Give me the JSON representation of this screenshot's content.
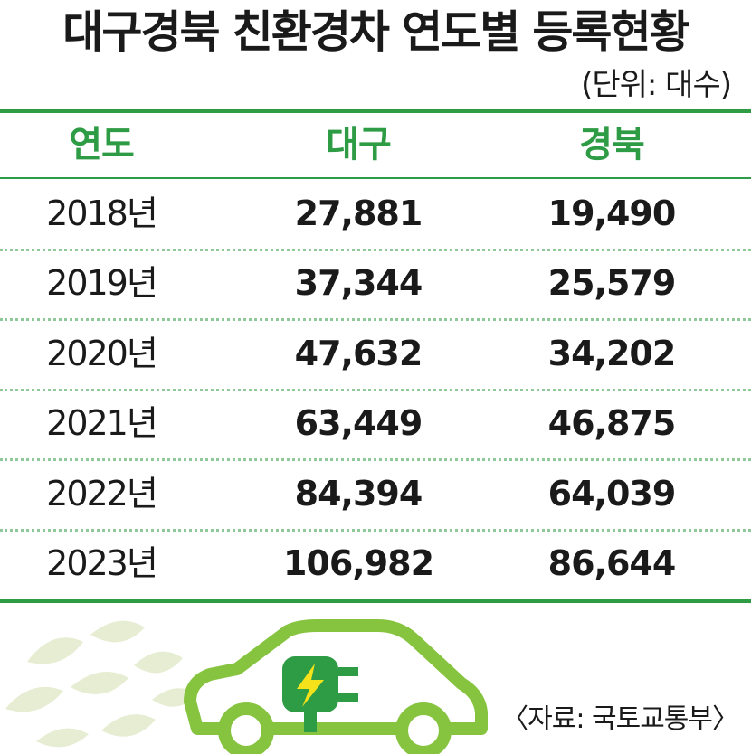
{
  "title": "대구경북 친환경차 연도별 등록현황",
  "unit": "(단위: 대수)",
  "source": "〈자료: 국토교통부〉",
  "colors": {
    "accent": "#2e9b45",
    "leaf": "#e6edd2",
    "car": "#86c440",
    "plug": "#2e9b45",
    "bolt": "#f6e21b"
  },
  "chart_data": {
    "type": "table",
    "columns": [
      "연도",
      "대구",
      "경북"
    ],
    "rows": [
      {
        "year": "2018년",
        "daegu": "27,881",
        "gyeongbuk": "19,490"
      },
      {
        "year": "2019년",
        "daegu": "37,344",
        "gyeongbuk": "25,579"
      },
      {
        "year": "2020년",
        "daegu": "47,632",
        "gyeongbuk": "34,202"
      },
      {
        "year": "2021년",
        "daegu": "63,449",
        "gyeongbuk": "46,875"
      },
      {
        "year": "2022년",
        "daegu": "84,394",
        "gyeongbuk": "64,039"
      },
      {
        "year": "2023년",
        "daegu": "106,982",
        "gyeongbuk": "86,644"
      }
    ]
  }
}
